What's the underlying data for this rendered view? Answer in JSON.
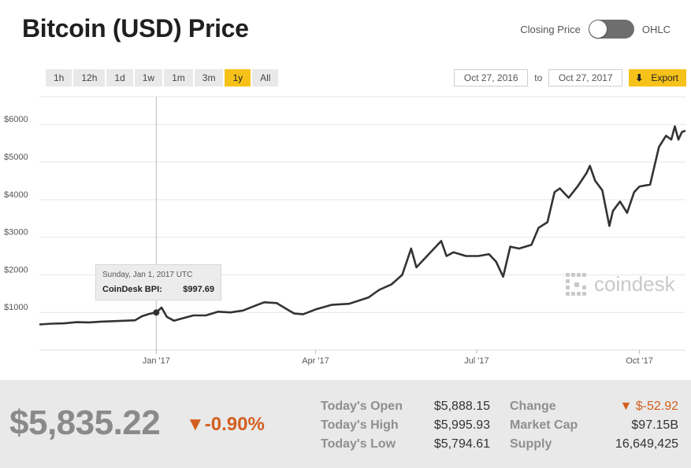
{
  "header": {
    "title": "Bitcoin (USD) Price",
    "toggle_left_label": "Closing Price",
    "toggle_right_label": "OHLC"
  },
  "range_buttons": [
    {
      "label": "1h",
      "active": false
    },
    {
      "label": "12h",
      "active": false
    },
    {
      "label": "1d",
      "active": false
    },
    {
      "label": "1w",
      "active": false
    },
    {
      "label": "1m",
      "active": false
    },
    {
      "label": "3m",
      "active": false
    },
    {
      "label": "1y",
      "active": true
    },
    {
      "label": "All",
      "active": false
    }
  ],
  "date_range": {
    "from": "Oct 27, 2016",
    "to_label": "to",
    "to": "Oct 27, 2017",
    "export_label": "Export"
  },
  "watermark": "coindesk",
  "tooltip": {
    "date": "Sunday, Jan 1, 2017 UTC",
    "label": "CoinDesk BPI:",
    "value": "$997.69"
  },
  "chart_data": {
    "type": "line",
    "title": "",
    "xlabel": "",
    "ylabel": "",
    "x_ticks": [
      {
        "date": "2017-01-01",
        "label": "Jan '17"
      },
      {
        "date": "2017-04-01",
        "label": "Apr '17"
      },
      {
        "date": "2017-07-01",
        "label": "Jul '17"
      },
      {
        "date": "2017-10-01",
        "label": "Oct '17"
      }
    ],
    "y_ticks": [
      {
        "value": 1000,
        "label": "$1000"
      },
      {
        "value": 2000,
        "label": "$2000"
      },
      {
        "value": 3000,
        "label": "$3000"
      },
      {
        "value": 4000,
        "label": "$4000"
      },
      {
        "value": 5000,
        "label": "$5000"
      },
      {
        "value": 6000,
        "label": "$6000"
      }
    ],
    "xlim": [
      "2016-10-27",
      "2017-10-27"
    ],
    "ylim": [
      0,
      6800
    ],
    "grid": true,
    "colors": {
      "line": "#333333",
      "grid": "#e6e6e6",
      "crosshair": "#bbbbbb"
    },
    "highlight": {
      "date": "2017-01-01",
      "value": 997.69
    },
    "series": [
      {
        "points": [
          [
            "2016-10-27",
            680
          ],
          [
            "2016-11-03",
            700
          ],
          [
            "2016-11-10",
            710
          ],
          [
            "2016-11-17",
            740
          ],
          [
            "2016-11-24",
            735
          ],
          [
            "2016-12-01",
            755
          ],
          [
            "2016-12-08",
            768
          ],
          [
            "2016-12-15",
            780
          ],
          [
            "2016-12-20",
            790
          ],
          [
            "2016-12-24",
            900
          ],
          [
            "2016-12-28",
            960
          ],
          [
            "2017-01-01",
            997.69
          ],
          [
            "2017-01-04",
            1130
          ],
          [
            "2017-01-07",
            880
          ],
          [
            "2017-01-11",
            780
          ],
          [
            "2017-01-15",
            830
          ],
          [
            "2017-01-22",
            920
          ],
          [
            "2017-01-29",
            920
          ],
          [
            "2017-02-05",
            1020
          ],
          [
            "2017-02-12",
            1000
          ],
          [
            "2017-02-19",
            1050
          ],
          [
            "2017-02-26",
            1180
          ],
          [
            "2017-03-03",
            1270
          ],
          [
            "2017-03-10",
            1250
          ],
          [
            "2017-03-17",
            1050
          ],
          [
            "2017-03-20",
            970
          ],
          [
            "2017-03-25",
            950
          ],
          [
            "2017-04-01",
            1080
          ],
          [
            "2017-04-10",
            1200
          ],
          [
            "2017-04-20",
            1230
          ],
          [
            "2017-05-01",
            1400
          ],
          [
            "2017-05-07",
            1600
          ],
          [
            "2017-05-14",
            1750
          ],
          [
            "2017-05-20",
            2000
          ],
          [
            "2017-05-25",
            2700
          ],
          [
            "2017-05-28",
            2200
          ],
          [
            "2017-06-04",
            2550
          ],
          [
            "2017-06-11",
            2900
          ],
          [
            "2017-06-14",
            2500
          ],
          [
            "2017-06-18",
            2600
          ],
          [
            "2017-06-25",
            2500
          ],
          [
            "2017-07-02",
            2500
          ],
          [
            "2017-07-08",
            2550
          ],
          [
            "2017-07-12",
            2350
          ],
          [
            "2017-07-16",
            1950
          ],
          [
            "2017-07-20",
            2750
          ],
          [
            "2017-07-25",
            2700
          ],
          [
            "2017-08-01",
            2800
          ],
          [
            "2017-08-05",
            3250
          ],
          [
            "2017-08-10",
            3400
          ],
          [
            "2017-08-14",
            4200
          ],
          [
            "2017-08-17",
            4300
          ],
          [
            "2017-08-22",
            4050
          ],
          [
            "2017-08-27",
            4350
          ],
          [
            "2017-09-01",
            4700
          ],
          [
            "2017-09-03",
            4900
          ],
          [
            "2017-09-06",
            4500
          ],
          [
            "2017-09-10",
            4250
          ],
          [
            "2017-09-14",
            3300
          ],
          [
            "2017-09-16",
            3700
          ],
          [
            "2017-09-20",
            3950
          ],
          [
            "2017-09-24",
            3650
          ],
          [
            "2017-09-28",
            4200
          ],
          [
            "2017-10-01",
            4350
          ],
          [
            "2017-10-07",
            4400
          ],
          [
            "2017-10-12",
            5400
          ],
          [
            "2017-10-16",
            5700
          ],
          [
            "2017-10-19",
            5600
          ],
          [
            "2017-10-21",
            5950
          ],
          [
            "2017-10-23",
            5600
          ],
          [
            "2017-10-25",
            5800
          ],
          [
            "2017-10-27",
            5835.22
          ]
        ]
      }
    ]
  },
  "stats": {
    "price": "$5,835.22",
    "change_pct": "-0.90%",
    "rows": [
      {
        "label": "Today's Open",
        "value": "$5,888.15"
      },
      {
        "label": "Today's High",
        "value": "$5,995.93"
      },
      {
        "label": "Today's Low",
        "value": "$5,794.61"
      },
      {
        "label": "Change",
        "value": "$-52.92"
      },
      {
        "label": "Market Cap",
        "value": "$97.15B"
      },
      {
        "label": "Supply",
        "value": "16,649,425"
      }
    ]
  }
}
